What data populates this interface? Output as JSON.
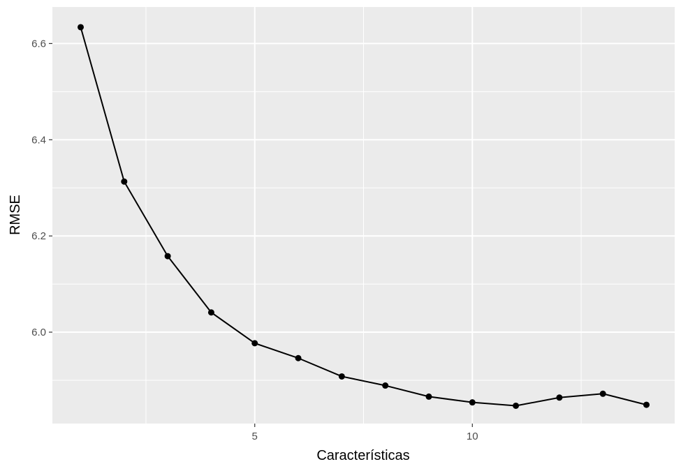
{
  "chart_data": {
    "type": "line",
    "title": "",
    "xlabel": "Características",
    "ylabel": "RMSE",
    "xlim": [
      0.35,
      14.65
    ],
    "ylim": [
      5.81,
      6.676
    ],
    "x_ticks": [
      5,
      10
    ],
    "x_tick_labels": [
      "5",
      "10"
    ],
    "x_minor_ticks": [
      2.5,
      7.5,
      12.5
    ],
    "y_ticks": [
      6.0,
      6.2,
      6.4,
      6.6
    ],
    "y_tick_labels": [
      "6.0",
      "6.2",
      "6.4",
      "6.6"
    ],
    "y_minor_ticks": [
      5.9,
      6.1,
      6.3,
      6.5
    ],
    "grid": true,
    "background": "#ebebeb",
    "line_color": "#000000",
    "x": [
      1,
      2,
      3,
      4,
      5,
      6,
      7,
      8,
      9,
      10,
      11,
      12,
      13,
      14
    ],
    "y": [
      6.634,
      6.313,
      6.158,
      6.041,
      5.977,
      5.946,
      5.908,
      5.889,
      5.866,
      5.854,
      5.847,
      5.864,
      5.872,
      5.849
    ]
  }
}
